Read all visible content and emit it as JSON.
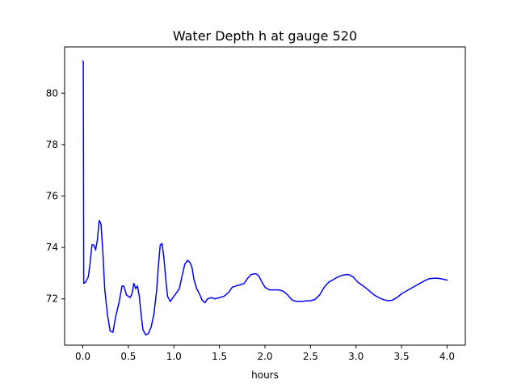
{
  "chart_data": {
    "type": "line",
    "title": "Water Depth h at gauge 520",
    "xlabel": "hours",
    "ylabel": "",
    "xlim": [
      -0.2,
      4.2
    ],
    "ylim": [
      70.2,
      81.8
    ],
    "grid": false,
    "x_ticks": [
      0.0,
      0.5,
      1.0,
      1.5,
      2.0,
      2.5,
      3.0,
      3.5,
      4.0
    ],
    "x_tick_labels": [
      "0.0",
      "0.5",
      "1.0",
      "1.5",
      "2.0",
      "2.5",
      "3.0",
      "3.5",
      "4.0"
    ],
    "y_ticks": [
      72,
      74,
      76,
      78,
      80
    ],
    "y_tick_labels": [
      "72",
      "74",
      "76",
      "78",
      "80"
    ],
    "series": [
      {
        "color": "#0000ff",
        "points": [
          [
            0.0,
            81.25
          ],
          [
            0.005,
            81.2
          ],
          [
            0.01,
            72.6
          ],
          [
            0.03,
            72.65
          ],
          [
            0.06,
            72.85
          ],
          [
            0.08,
            73.4
          ],
          [
            0.1,
            74.1
          ],
          [
            0.12,
            74.1
          ],
          [
            0.14,
            73.9
          ],
          [
            0.16,
            74.3
          ],
          [
            0.18,
            75.05
          ],
          [
            0.2,
            74.9
          ],
          [
            0.22,
            73.8
          ],
          [
            0.24,
            72.4
          ],
          [
            0.27,
            71.4
          ],
          [
            0.3,
            70.75
          ],
          [
            0.33,
            70.7
          ],
          [
            0.36,
            71.3
          ],
          [
            0.4,
            71.9
          ],
          [
            0.43,
            72.5
          ],
          [
            0.45,
            72.5
          ],
          [
            0.48,
            72.15
          ],
          [
            0.52,
            72.05
          ],
          [
            0.54,
            72.2
          ],
          [
            0.56,
            72.6
          ],
          [
            0.58,
            72.4
          ],
          [
            0.6,
            72.5
          ],
          [
            0.62,
            72.1
          ],
          [
            0.64,
            71.4
          ],
          [
            0.66,
            70.8
          ],
          [
            0.69,
            70.6
          ],
          [
            0.72,
            70.65
          ],
          [
            0.75,
            70.9
          ],
          [
            0.78,
            71.4
          ],
          [
            0.81,
            72.3
          ],
          [
            0.83,
            73.3
          ],
          [
            0.85,
            74.1
          ],
          [
            0.87,
            74.15
          ],
          [
            0.89,
            73.6
          ],
          [
            0.91,
            72.8
          ],
          [
            0.93,
            72.1
          ],
          [
            0.96,
            71.9
          ],
          [
            0.99,
            72.05
          ],
          [
            1.02,
            72.2
          ],
          [
            1.06,
            72.4
          ],
          [
            1.09,
            72.9
          ],
          [
            1.12,
            73.35
          ],
          [
            1.15,
            73.5
          ],
          [
            1.18,
            73.4
          ],
          [
            1.2,
            73.2
          ],
          [
            1.22,
            72.75
          ],
          [
            1.25,
            72.4
          ],
          [
            1.28,
            72.2
          ],
          [
            1.31,
            71.95
          ],
          [
            1.34,
            71.85
          ],
          [
            1.37,
            72.0
          ],
          [
            1.41,
            72.05
          ],
          [
            1.45,
            72.0
          ],
          [
            1.5,
            72.05
          ],
          [
            1.55,
            72.1
          ],
          [
            1.6,
            72.25
          ],
          [
            1.64,
            72.45
          ],
          [
            1.68,
            72.5
          ],
          [
            1.73,
            72.55
          ],
          [
            1.77,
            72.6
          ],
          [
            1.81,
            72.8
          ],
          [
            1.85,
            72.95
          ],
          [
            1.9,
            72.98
          ],
          [
            1.93,
            72.9
          ],
          [
            1.96,
            72.7
          ],
          [
            2.0,
            72.45
          ],
          [
            2.05,
            72.35
          ],
          [
            2.1,
            72.35
          ],
          [
            2.15,
            72.35
          ],
          [
            2.2,
            72.3
          ],
          [
            2.25,
            72.15
          ],
          [
            2.3,
            71.95
          ],
          [
            2.35,
            71.9
          ],
          [
            2.4,
            71.9
          ],
          [
            2.45,
            71.92
          ],
          [
            2.5,
            71.93
          ],
          [
            2.55,
            71.98
          ],
          [
            2.6,
            72.15
          ],
          [
            2.65,
            72.45
          ],
          [
            2.7,
            72.65
          ],
          [
            2.75,
            72.75
          ],
          [
            2.8,
            72.85
          ],
          [
            2.85,
            72.92
          ],
          [
            2.9,
            72.95
          ],
          [
            2.93,
            72.93
          ],
          [
            2.97,
            72.85
          ],
          [
            3.02,
            72.65
          ],
          [
            3.08,
            72.5
          ],
          [
            3.15,
            72.3
          ],
          [
            3.2,
            72.15
          ],
          [
            3.25,
            72.05
          ],
          [
            3.3,
            71.97
          ],
          [
            3.35,
            71.93
          ],
          [
            3.4,
            71.95
          ],
          [
            3.45,
            72.05
          ],
          [
            3.5,
            72.2
          ],
          [
            3.6,
            72.4
          ],
          [
            3.7,
            72.6
          ],
          [
            3.75,
            72.7
          ],
          [
            3.8,
            72.78
          ],
          [
            3.85,
            72.8
          ],
          [
            3.9,
            72.8
          ],
          [
            3.95,
            72.77
          ],
          [
            4.0,
            72.73
          ]
        ]
      }
    ]
  }
}
